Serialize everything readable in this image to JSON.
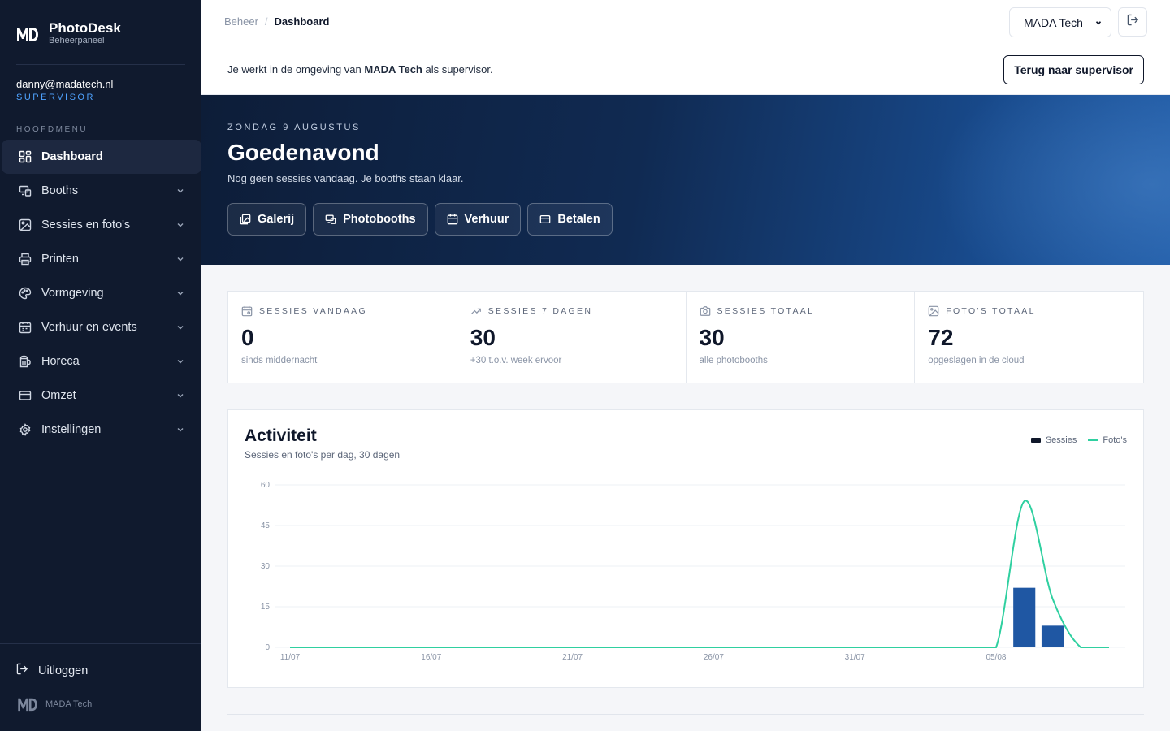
{
  "brand": {
    "title": "PhotoDesk",
    "subtitle": "Beheerpaneel",
    "logo_text": "MD"
  },
  "user": {
    "email": "danny@madatech.nl",
    "role": "SUPERVISOR"
  },
  "menu": {
    "heading": "HOOFDMENU",
    "items": [
      {
        "label": "Dashboard",
        "icon": "dashboard-icon",
        "active": true,
        "expandable": false
      },
      {
        "label": "Booths",
        "icon": "booth-icon",
        "expandable": true
      },
      {
        "label": "Sessies en foto's",
        "icon": "image-icon",
        "expandable": true
      },
      {
        "label": "Printen",
        "icon": "printer-icon",
        "expandable": true
      },
      {
        "label": "Vormgeving",
        "icon": "palette-icon",
        "expandable": true
      },
      {
        "label": "Verhuur en events",
        "icon": "calendar-icon",
        "expandable": true
      },
      {
        "label": "Horeca",
        "icon": "beer-icon",
        "expandable": true
      },
      {
        "label": "Omzet",
        "icon": "credit-card-icon",
        "expandable": true
      },
      {
        "label": "Instellingen",
        "icon": "gear-icon",
        "expandable": true
      }
    ]
  },
  "logout_label": "Uitloggen",
  "footer_brand": "MADA Tech",
  "breadcrumb": {
    "parent": "Beheer",
    "separator": "/",
    "current": "Dashboard"
  },
  "org_select": {
    "value": "MADA Tech"
  },
  "notice": {
    "prefix": "Je werkt in de omgeving van ",
    "org": "MADA Tech",
    "suffix": " als supervisor.",
    "button": "Terug naar supervisor"
  },
  "hero": {
    "date": "ZONDAG 9 AUGUSTUS",
    "title": "Goedenavond",
    "subtitle": "Nog geen sessies vandaag. Je booths staan klaar.",
    "actions": [
      {
        "label": "Galerij",
        "icon": "gallery-icon"
      },
      {
        "label": "Photobooths",
        "icon": "booth-icon"
      },
      {
        "label": "Verhuur",
        "icon": "calendar-icon"
      },
      {
        "label": "Betalen",
        "icon": "credit-card-icon"
      }
    ]
  },
  "stats": [
    {
      "label": "SESSIES VANDAAG",
      "value": "0",
      "note": "sinds middernacht",
      "icon": "calendar-icon"
    },
    {
      "label": "SESSIES 7 DAGEN",
      "value": "30",
      "note": "+30 t.o.v. week ervoor",
      "icon": "trend-up-icon"
    },
    {
      "label": "SESSIES TOTAAL",
      "value": "30",
      "note": "alle photobooths",
      "icon": "camera-icon"
    },
    {
      "label": "FOTO'S TOTAAL",
      "value": "72",
      "note": "opgeslagen in de cloud",
      "icon": "image-icon"
    }
  ],
  "chart": {
    "title": "Activiteit",
    "subtitle": "Sessies en foto's per dag, 30 dagen",
    "legend": [
      "Sessies",
      "Foto's"
    ]
  },
  "chart_data": {
    "type": "bar",
    "title": "Activiteit",
    "subtitle": "Sessies en foto's per dag, 30 dagen",
    "xlabel": "",
    "ylabel": "",
    "ylim": [
      0,
      60
    ],
    "yticks": [
      0,
      15,
      30,
      45,
      60
    ],
    "xtick_labels": [
      "11/07",
      "16/07",
      "21/07",
      "26/07",
      "31/07",
      "05/08"
    ],
    "x": [
      "11/07",
      "12/07",
      "13/07",
      "14/07",
      "15/07",
      "16/07",
      "17/07",
      "18/07",
      "19/07",
      "20/07",
      "21/07",
      "22/07",
      "23/07",
      "24/07",
      "25/07",
      "26/07",
      "27/07",
      "28/07",
      "29/07",
      "30/07",
      "31/07",
      "01/08",
      "02/08",
      "03/08",
      "04/08",
      "05/08",
      "06/08",
      "07/08",
      "08/08",
      "09/08"
    ],
    "grid": true,
    "legend_position": "top-right",
    "series": [
      {
        "name": "Sessies",
        "kind": "bar",
        "color": "#1f57a3",
        "values": [
          0,
          0,
          0,
          0,
          0,
          0,
          0,
          0,
          0,
          0,
          0,
          0,
          0,
          0,
          0,
          0,
          0,
          0,
          0,
          0,
          0,
          0,
          0,
          0,
          0,
          0,
          22,
          8,
          0,
          0
        ]
      },
      {
        "name": "Foto's",
        "kind": "line",
        "color": "#2fd0a0",
        "values": [
          0,
          0,
          0,
          0,
          0,
          0,
          0,
          0,
          0,
          0,
          0,
          0,
          0,
          0,
          0,
          0,
          0,
          0,
          0,
          0,
          0,
          0,
          0,
          0,
          0,
          0,
          54,
          18,
          0,
          0
        ]
      }
    ]
  },
  "colors": {
    "sidebar_bg": "#101a2e",
    "accent": "#4fa3ff",
    "bar": "#1f57a3",
    "line": "#2fd0a0"
  }
}
